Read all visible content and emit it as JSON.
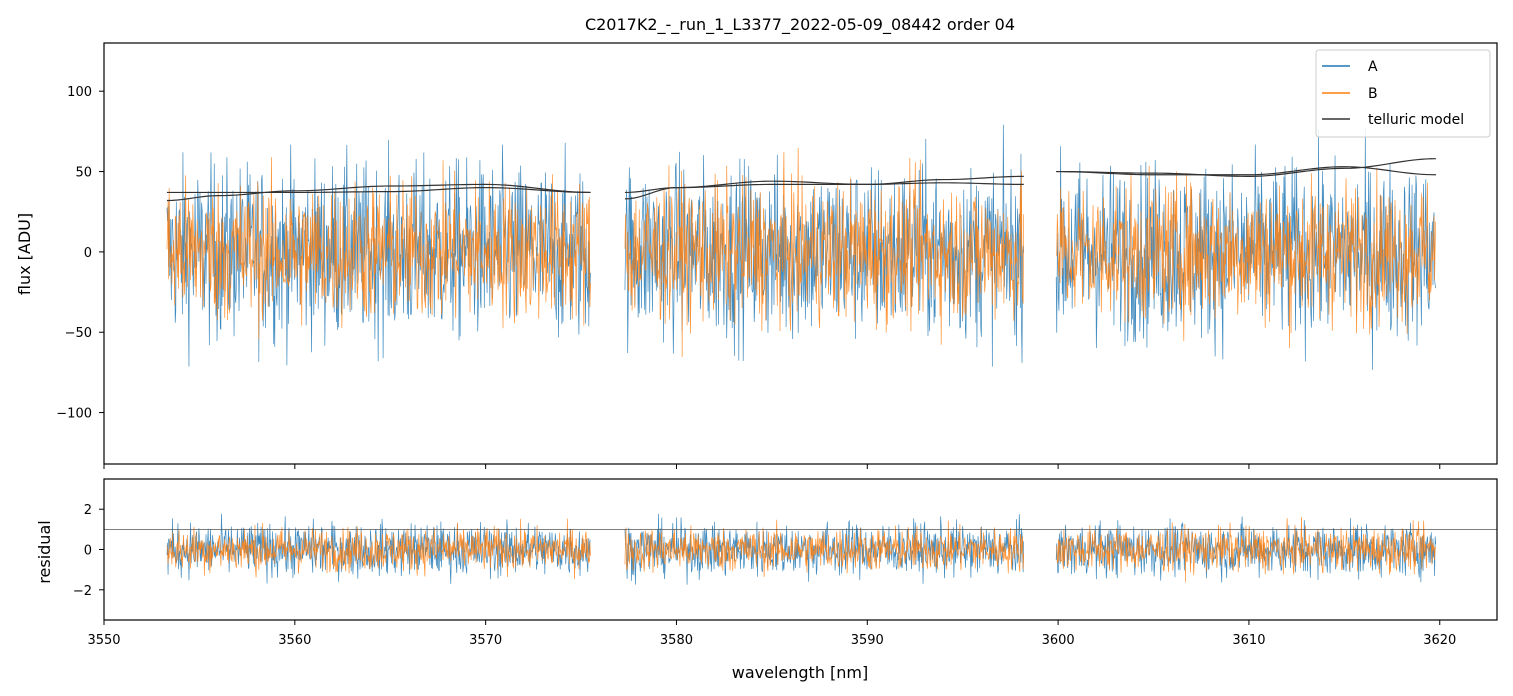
{
  "chart_data": [
    {
      "type": "line",
      "title": "C2017K2_-_run_1_L3377_2022-05-09_08442  order 04",
      "xlabel": "",
      "ylabel": "flux [ADU]",
      "xlim": [
        3550.0,
        3623.0
      ],
      "ylim": [
        -132,
        130
      ],
      "yticks": [
        -100,
        -50,
        0,
        50,
        100
      ],
      "xticks": [
        3550,
        3560,
        3570,
        3580,
        3590,
        3600,
        3610,
        3620
      ],
      "legend": {
        "placement": "top-right",
        "entries": [
          "A",
          "B",
          "telluric model"
        ]
      },
      "segments": [
        {
          "x": [
            3553.3,
            3575.5
          ]
        },
        {
          "x": [
            3577.3,
            3598.2
          ]
        },
        {
          "x": [
            3599.9,
            3619.8
          ]
        }
      ],
      "series": [
        {
          "name": "A",
          "color": "#1f77b4",
          "center": 0,
          "spread": 50,
          "style": "noisy"
        },
        {
          "name": "B",
          "color": "#ff7f0e",
          "center": 0,
          "spread": 40,
          "style": "noisy"
        },
        {
          "name": "telluric model",
          "color": "#333333",
          "curves": [
            {
              "x": [
                3553.3,
                3556,
                3560,
                3565,
                3570,
                3575.5
              ],
              "y": [
                37,
                37,
                37,
                37.5,
                40,
                37
              ]
            },
            {
              "x": [
                3553.3,
                3556,
                3560,
                3565,
                3570,
                3575.5
              ],
              "y": [
                32,
                35,
                38,
                41,
                42,
                37
              ]
            },
            {
              "x": [
                3577.3,
                3580,
                3585,
                3590,
                3594,
                3598.2
              ],
              "y": [
                37,
                40,
                42,
                42,
                45,
                47
              ]
            },
            {
              "x": [
                3577.3,
                3580,
                3585,
                3590,
                3594,
                3598.2
              ],
              "y": [
                33,
                40,
                44,
                42,
                43,
                42
              ]
            },
            {
              "x": [
                3599.9,
                3605,
                3610,
                3615,
                3619.8
              ],
              "y": [
                50,
                49,
                47,
                52,
                58
              ]
            },
            {
              "x": [
                3599.9,
                3605,
                3610,
                3615,
                3619.8
              ],
              "y": [
                50,
                48,
                48,
                53,
                48
              ]
            }
          ]
        }
      ]
    },
    {
      "type": "line",
      "xlabel": "wavelength [nm]",
      "ylabel": "residual",
      "xlim": [
        3550.0,
        3623.0
      ],
      "ylim": [
        -3.5,
        3.5
      ],
      "yticks": [
        -2,
        0,
        2
      ],
      "xticks": [
        3550,
        3560,
        3570,
        3580,
        3590,
        3600,
        3610,
        3620
      ],
      "reference_line": 1,
      "segments": [
        {
          "x": [
            3553.3,
            3575.5
          ]
        },
        {
          "x": [
            3577.3,
            3598.2
          ]
        },
        {
          "x": [
            3599.9,
            3619.8
          ]
        }
      ],
      "series": [
        {
          "name": "A",
          "color": "#1f77b4",
          "center": 0,
          "spread": 1.2,
          "style": "noisy"
        },
        {
          "name": "B",
          "color": "#ff7f0e",
          "center": 0,
          "spread": 1.0,
          "style": "noisy"
        }
      ]
    }
  ]
}
